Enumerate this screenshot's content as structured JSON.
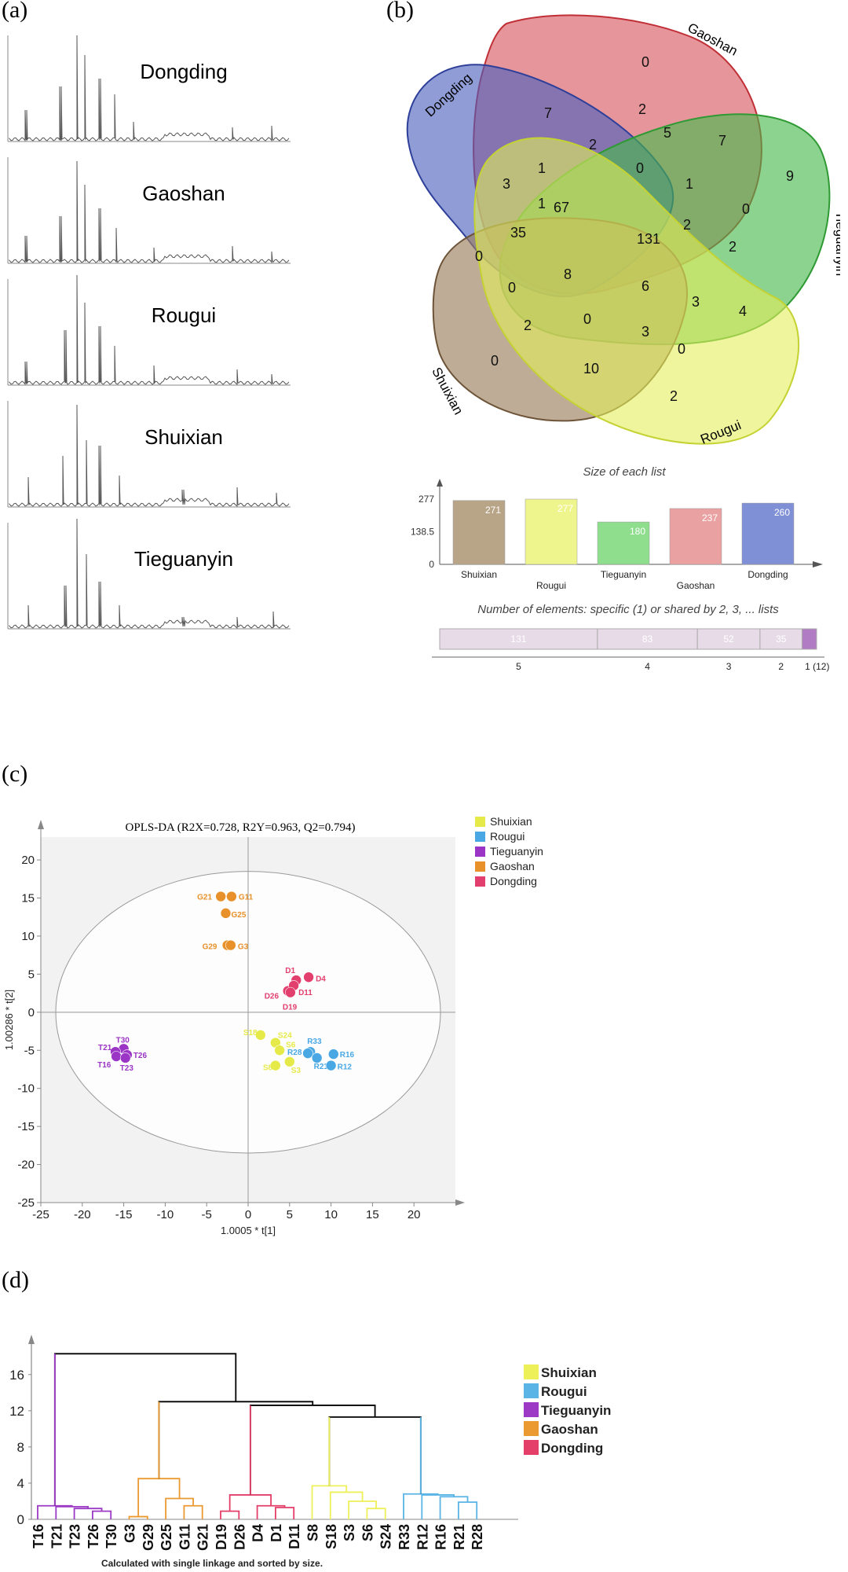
{
  "panel_labels": {
    "a": "(a)",
    "b": "(b)",
    "c": "(c)",
    "d": "(d)"
  },
  "chromatograms": {
    "samples": [
      "Dongding",
      "Gaoshan",
      "Rougui",
      "Shuixian",
      "Tieguanyin"
    ],
    "line_color": "#555555"
  },
  "venn": {
    "set_labels": [
      "Gaoshan",
      "Dongding",
      "Tieguanyin",
      "Shuixian",
      "Rougui"
    ],
    "region_counts": [
      "0",
      "7",
      "2",
      "5",
      "7",
      "1",
      "2",
      "0",
      "1",
      "9",
      "3",
      "1",
      "67",
      "131",
      "2",
      "0",
      "35",
      "2",
      "0",
      "8",
      "6",
      "0",
      "3",
      "4",
      "2",
      "0",
      "3",
      "0",
      "10",
      "0",
      "2"
    ],
    "colors": {
      "Dongding": "#4a5fbd",
      "Gaoshan": "#d7545d",
      "Tieguanyin": "#45b84a",
      "Shuixian": "#9c8060",
      "Rougui": "#e2ef5a"
    }
  },
  "list_sizes": {
    "title": "Size of each list",
    "categories": [
      "Shuixian",
      "Rougui",
      "Tieguanyin",
      "Gaoshan",
      "Dongding"
    ],
    "values": [
      271,
      277,
      180,
      237,
      260
    ],
    "value_labels": [
      "271",
      "277",
      "180",
      "237",
      "260"
    ],
    "colors": [
      "#b8a587",
      "#eff58d",
      "#8ede8e",
      "#e9a1a1",
      "#8090d6"
    ],
    "yticks": [
      "277",
      "138.5",
      "0"
    ]
  },
  "shared_elements": {
    "title": "Number of elements: specific (1) or shared by 2, 3, ... lists",
    "segments": [
      {
        "value": 131,
        "label": "131",
        "axis_label": "5"
      },
      {
        "value": 83,
        "label": "83",
        "axis_label": "4"
      },
      {
        "value": 52,
        "label": "52",
        "axis_label": "3"
      },
      {
        "value": 35,
        "label": "35",
        "axis_label": "2"
      },
      {
        "value": 12,
        "label": "",
        "axis_label": "1 (12)"
      }
    ]
  },
  "chart_data": [
    {
      "type": "scatter",
      "title": "OPLS-DA (R2X=0.728, R2Y=0.963, Q2=0.794)",
      "xlabel": "1.0005 * t[1]",
      "ylabel": "1.00286 * t[2]",
      "xlim": [
        -25,
        25
      ],
      "ylim": [
        -25,
        20
      ],
      "xticks": [
        "-25",
        "-20",
        "-15",
        "-10",
        "-5",
        "0",
        "5",
        "10",
        "15",
        "20"
      ],
      "yticks": [
        "20",
        "15",
        "10",
        "5",
        "0",
        "-5",
        "-10",
        "-15",
        "-20",
        "-25"
      ],
      "legend": [
        "Shuixian",
        "Rougui",
        "Tieguanyin",
        "Gaoshan",
        "Dongding"
      ],
      "series": [
        {
          "name": "Shuixian",
          "color": "#e6ea48",
          "points": [
            {
              "label": "S18",
              "x": 1.5,
              "y": -3
            },
            {
              "label": "S24",
              "x": 3.3,
              "y": -4
            },
            {
              "label": "S6",
              "x": 3.8,
              "y": -5
            },
            {
              "label": "S8",
              "x": 3.3,
              "y": -7
            },
            {
              "label": "S3",
              "x": 5,
              "y": -6.5
            }
          ]
        },
        {
          "name": "Rougui",
          "color": "#49a8e4",
          "points": [
            {
              "label": "R33",
              "x": 7.5,
              "y": -5.2
            },
            {
              "label": "R28",
              "x": 7.2,
              "y": -5.4
            },
            {
              "label": "R21",
              "x": 8.3,
              "y": -6
            },
            {
              "label": "R16",
              "x": 10.3,
              "y": -5.5
            },
            {
              "label": "R12",
              "x": 10,
              "y": -7
            }
          ]
        },
        {
          "name": "Tieguanyin",
          "color": "#9b35c6",
          "points": [
            {
              "label": "T30",
              "x": -15,
              "y": -4.8
            },
            {
              "label": "T21",
              "x": -16,
              "y": -5.2
            },
            {
              "label": "T26",
              "x": -14.6,
              "y": -5.6
            },
            {
              "label": "T16",
              "x": -15.9,
              "y": -5.8
            },
            {
              "label": "T23",
              "x": -14.8,
              "y": -6
            }
          ]
        },
        {
          "name": "Gaoshan",
          "color": "#e8912a",
          "points": [
            {
              "label": "G21",
              "x": -3.3,
              "y": 15.2
            },
            {
              "label": "G11",
              "x": -2,
              "y": 15.2
            },
            {
              "label": "G25",
              "x": -2.7,
              "y": 13
            },
            {
              "label": "G29",
              "x": -2.5,
              "y": 8.8
            },
            {
              "label": "G3",
              "x": -2.1,
              "y": 8.8
            }
          ]
        },
        {
          "name": "Dongding",
          "color": "#e23f6e",
          "points": [
            {
              "label": "D1",
              "x": 5.8,
              "y": 4.2
            },
            {
              "label": "D4",
              "x": 7.3,
              "y": 4.6
            },
            {
              "label": "D26",
              "x": 4.8,
              "y": 2.8
            },
            {
              "label": "D11",
              "x": 5.5,
              "y": 3.5
            },
            {
              "label": "D19",
              "x": 5.1,
              "y": 2.6
            }
          ]
        }
      ]
    },
    {
      "type": "dendrogram",
      "note": "Calculated with single linkage and sorted by size.",
      "yticks": [
        "16",
        "12",
        "8",
        "4",
        "0"
      ],
      "ylim": [
        0,
        18.5
      ],
      "leaves": [
        "T16",
        "T21",
        "T23",
        "T26",
        "T30",
        "G3",
        "G29",
        "G25",
        "G11",
        "G21",
        "D19",
        "D26",
        "D4",
        "D1",
        "D11",
        "S8",
        "S18",
        "S3",
        "S6",
        "S24",
        "R33",
        "R12",
        "R16",
        "R21",
        "R28"
      ],
      "legend": [
        "Shuixian",
        "Rougui",
        "Tieguanyin",
        "Gaoshan",
        "Dongding"
      ],
      "colors": {
        "Shuixian": "#eef05a",
        "Rougui": "#5ab4e6",
        "Tieguanyin": "#9c3ac6",
        "Gaoshan": "#ea9a30",
        "Dongding": "#e33f69",
        "root": "#000000"
      }
    }
  ]
}
